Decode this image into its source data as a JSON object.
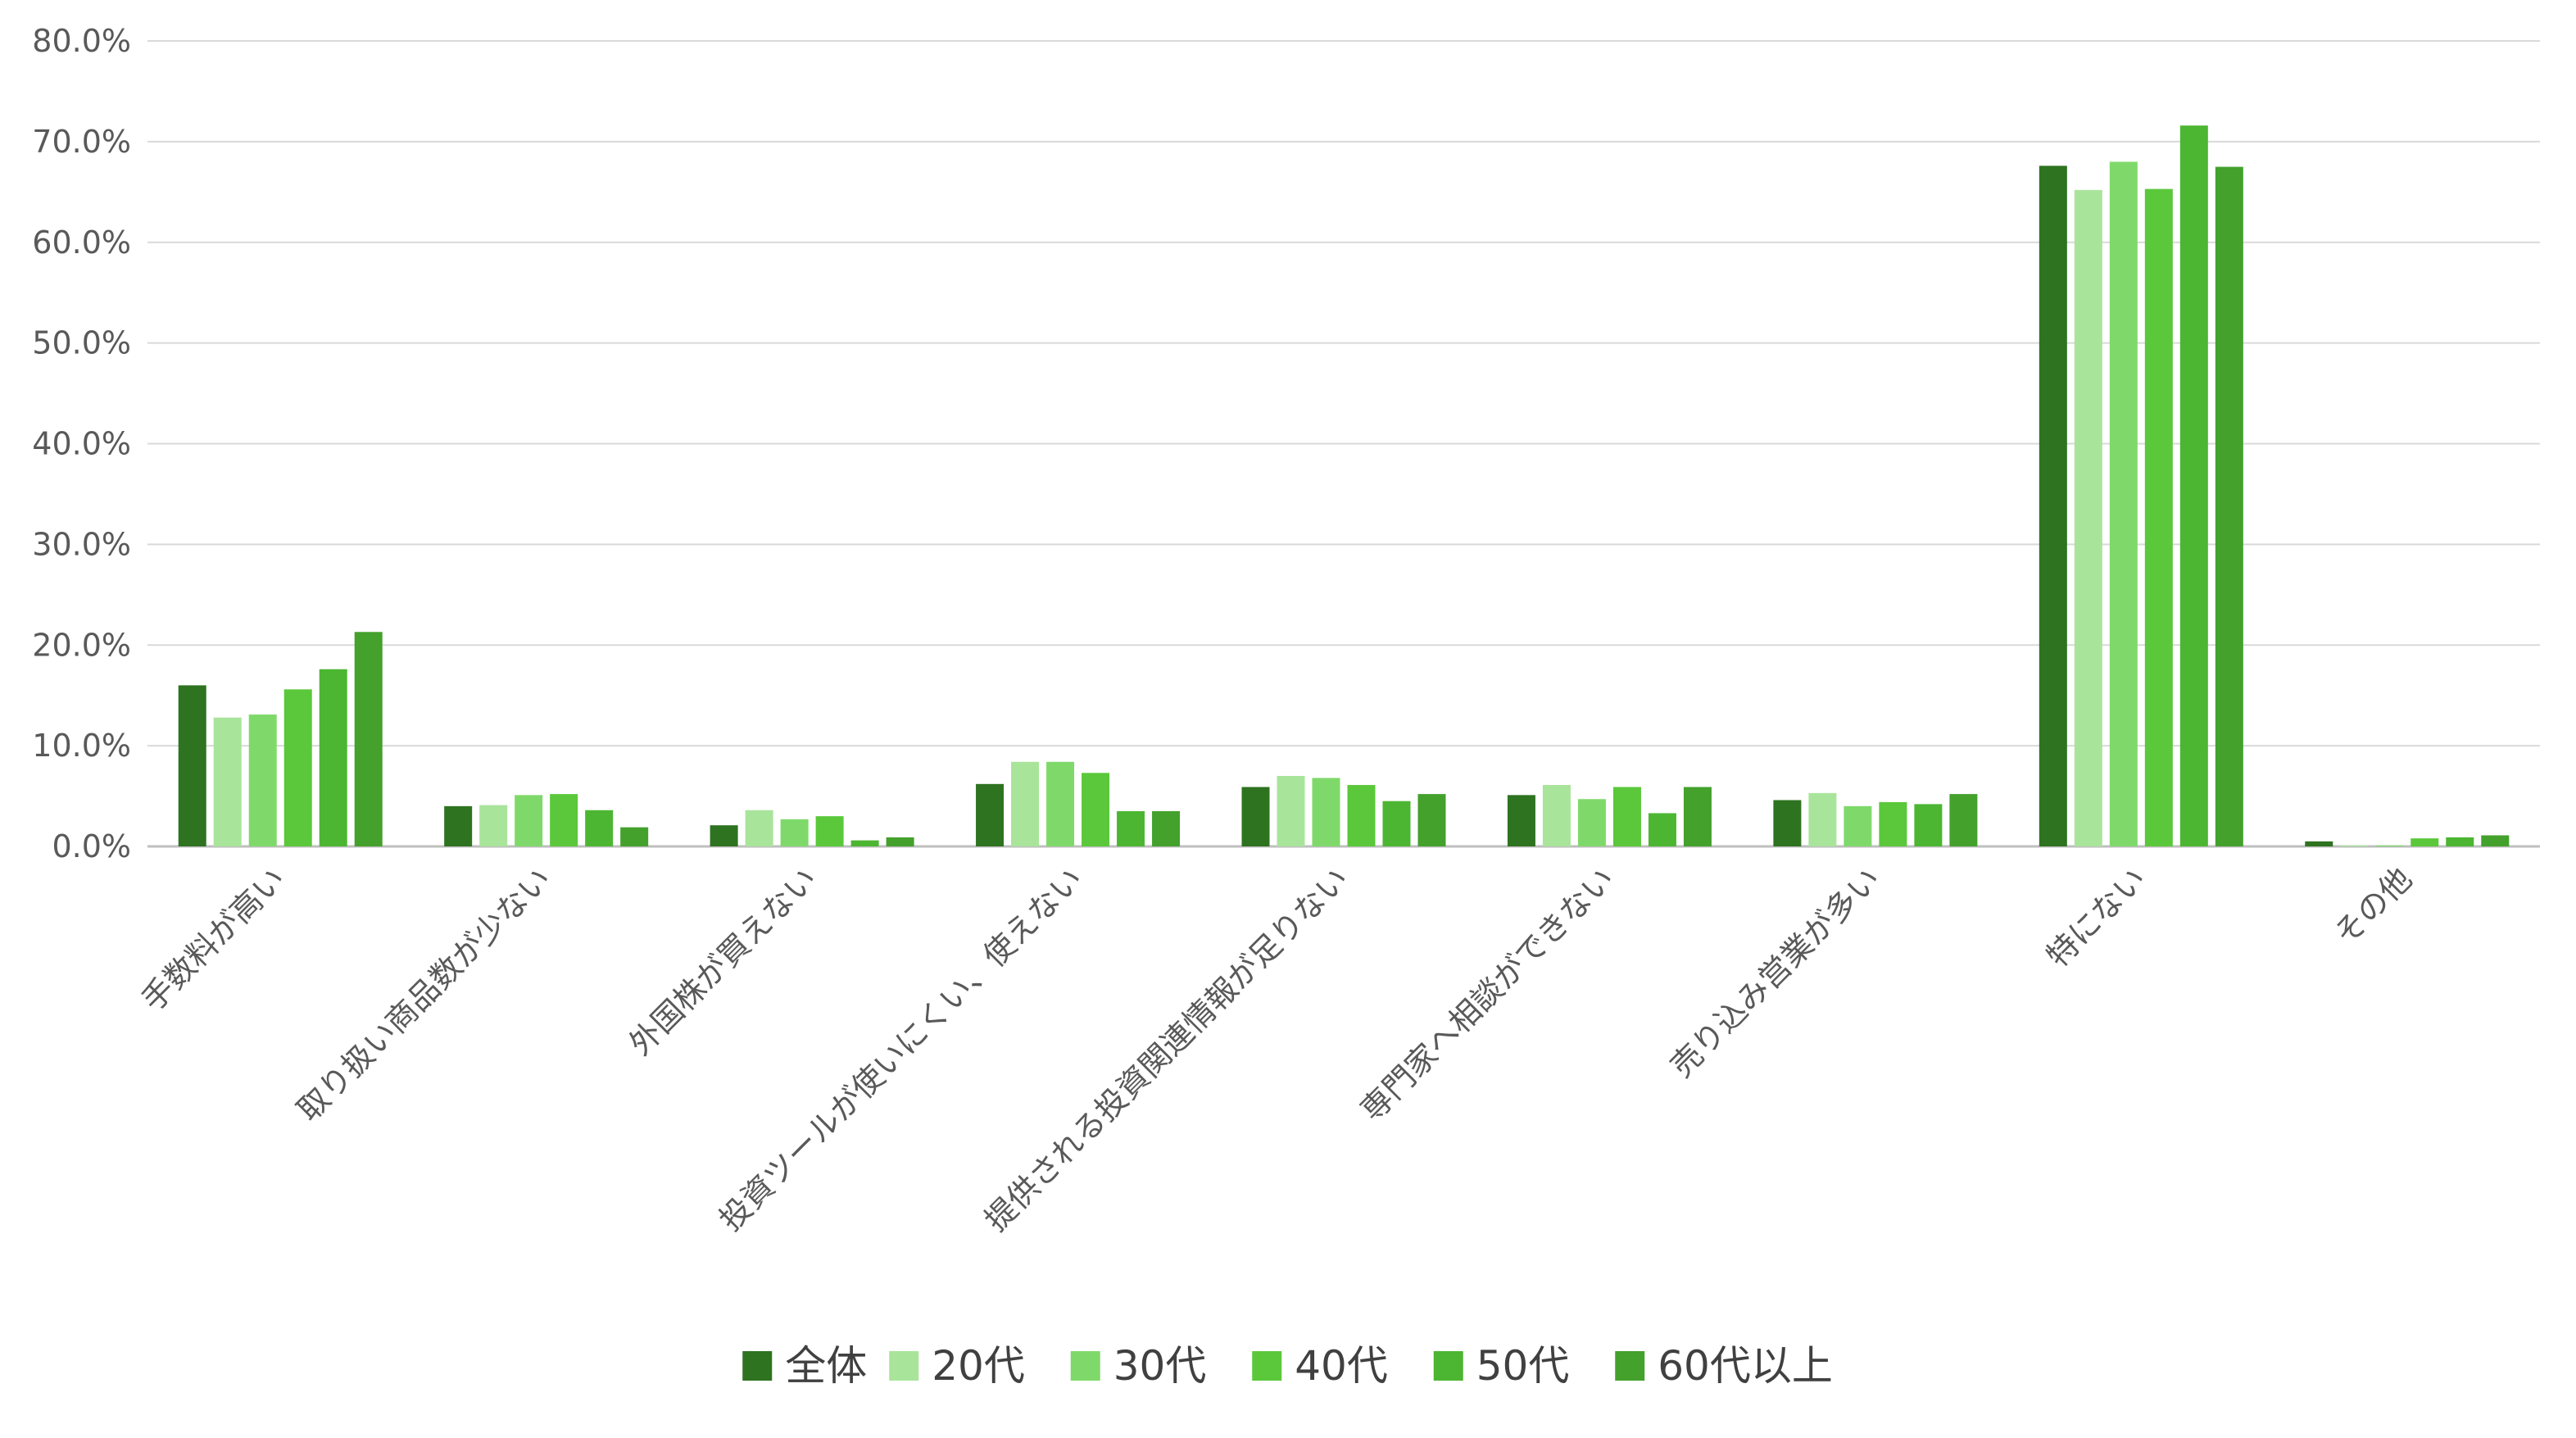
{
  "chart_data": {
    "type": "bar",
    "title": "",
    "xlabel": "",
    "ylabel": "",
    "ylim": [
      0,
      80
    ],
    "yticks": [
      "0.0%",
      "10.0%",
      "20.0%",
      "30.0%",
      "40.0%",
      "50.0%",
      "60.0%",
      "70.0%",
      "80.0%"
    ],
    "grid": true,
    "legend_position": "bottom",
    "categories": [
      "手数料が高い",
      "取り扱い商品数が少ない",
      "外国株が買えない",
      "投資ツールが使いにくい、使えない",
      "提供される投資関連情報が足りない",
      "専門家へ相談ができない",
      "売り込み営業が多い",
      "特にない",
      "その他"
    ],
    "series": [
      {
        "name": "全体",
        "color": "#2e7320",
        "values": [
          16.0,
          4.0,
          2.1,
          6.2,
          5.9,
          5.1,
          4.6,
          67.6,
          0.5
        ]
      },
      {
        "name": "20代",
        "color": "#a9e49b",
        "values": [
          12.8,
          4.1,
          3.6,
          8.4,
          7.0,
          6.1,
          5.3,
          65.2,
          0.1
        ]
      },
      {
        "name": "30代",
        "color": "#7fd96a",
        "values": [
          13.1,
          5.1,
          2.7,
          8.4,
          6.8,
          4.7,
          4.0,
          68.0,
          0.1
        ]
      },
      {
        "name": "40代",
        "color": "#5ac83a",
        "values": [
          15.6,
          5.2,
          3.0,
          7.3,
          6.1,
          5.9,
          4.4,
          65.3,
          0.8
        ]
      },
      {
        "name": "50代",
        "color": "#4cb632",
        "values": [
          17.6,
          3.6,
          0.6,
          3.5,
          4.5,
          3.3,
          4.2,
          71.6,
          0.9
        ]
      },
      {
        "name": "60代以上",
        "color": "#43a12c",
        "values": [
          21.3,
          1.9,
          0.9,
          3.5,
          5.2,
          5.9,
          5.2,
          67.5,
          1.1
        ]
      }
    ]
  }
}
